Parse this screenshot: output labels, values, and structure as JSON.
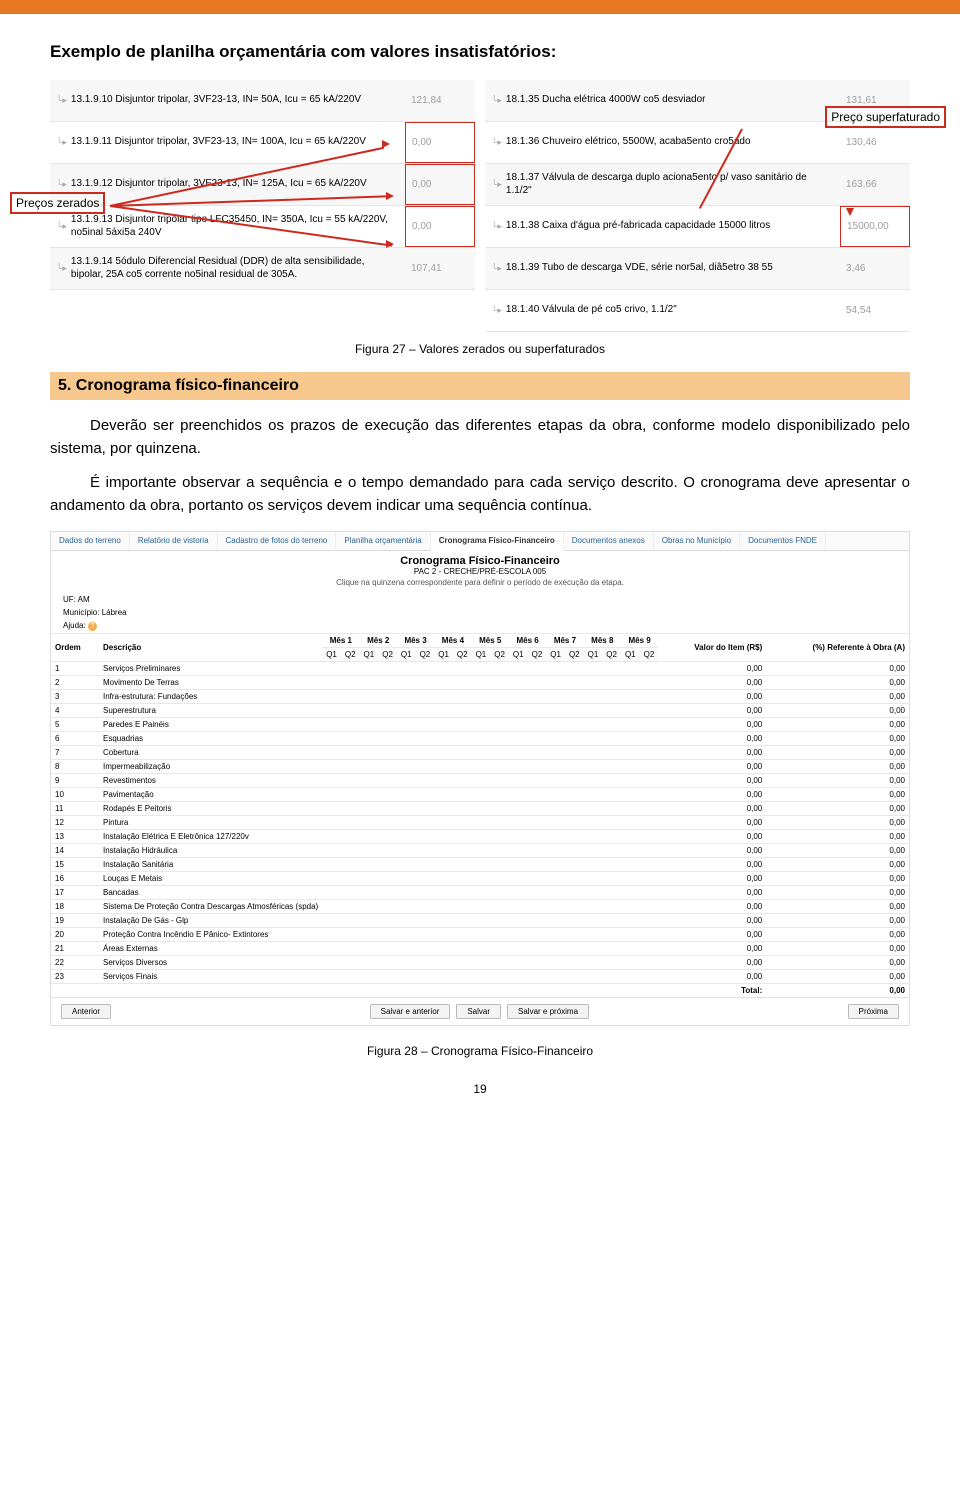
{
  "header": {
    "title": "Exemplo de planilha orçamentária com valores insatisfatórios:"
  },
  "annot": {
    "precos_zerados": "Preços zerados",
    "preco_superf": "Preço superfaturado"
  },
  "leftGrid": [
    {
      "desc": "13.1.9.10 Disjuntor tripolar, 3VF23-13, IN= 50A, Icu = 65 kA/220V",
      "val": "121,84",
      "boxed": false
    },
    {
      "desc": "13.1.9.11 Disjuntor tripolar, 3VF23-13, IN= 100A, Icu = 65 kA/220V",
      "val": "0,00",
      "boxed": true
    },
    {
      "desc": "13.1.9.12 Disjuntor tripolar, 3VF23-13, IN= 125A, Icu = 65 kA/220V",
      "val": "0,00",
      "boxed": true
    },
    {
      "desc": "13.1.9.13 Disjuntor tripolar tipo LFC35450, IN= 350A, Icu = 55 kA/220V, no5inal 5áxi5a 240V",
      "val": "0,00",
      "boxed": true
    },
    {
      "desc": "13.1.9.14 5ódulo Diferencial Residual (DDR) de alta sensibilidade, bipolar, 25A co5 corrente no5inal residual de 305A.",
      "val": "107,41",
      "boxed": false
    }
  ],
  "rightGrid": [
    {
      "desc": "18.1.35 Ducha elétrica 4000W co5 desviador",
      "val": "131,61",
      "boxed": false
    },
    {
      "desc": "18.1.36 Chuveiro elétrico, 5500W, acaba5ento cro5ado",
      "val": "130,46",
      "boxed": false
    },
    {
      "desc": "18.1.37 Válvula de descarga duplo aciona5ento p/ vaso sanitário de 1.1/2\"",
      "val": "163,66",
      "boxed": false
    },
    {
      "desc": "18.1.38 Caixa d'água pré-fabricada capacidade 15000 litros",
      "val": "15000,00",
      "boxed": true
    },
    {
      "desc": "18.1.39 Tubo de descarga VDE, série nor5al, diâ5etro 38 55",
      "val": "3,46",
      "boxed": false
    },
    {
      "desc": "18.1.40 Válvula de pé co5 crivo, 1.1/2\"",
      "val": "54,54",
      "boxed": false
    }
  ],
  "fig27": "Figura 27 – Valores zerados ou superfaturados",
  "section5": {
    "head": "5. Cronograma físico-financeiro"
  },
  "para1": "Deverão ser preenchidos os prazos de execução das diferentes etapas da obra, conforme modelo disponibilizado pelo sistema, por quinzena.",
  "para2": "É importante observar a sequência e o tempo demandado para cada serviço descrito. O cronograma deve apresentar o andamento da obra, portanto os serviços devem indicar uma sequência contínua.",
  "cron": {
    "tabs": [
      "Dados do terreno",
      "Relatório de vistoria",
      "Cadastro de fotos do terreno",
      "Planilha orçamentária",
      "Cronograma Físico-Financeiro",
      "Documentos anexos",
      "Obras no Município",
      "Documentos FNDE"
    ],
    "activeTab": 4,
    "title": "Cronograma Físico-Financeiro",
    "sub": "PAC 2 - CRECHE/PRÉ-ESCOLA 005",
    "sub2": "Clique na quinzena correspondente para definir o período de execução da etapa.",
    "uf_label": "UF:",
    "uf": "AM",
    "mun_label": "Município:",
    "mun": "Lábrea",
    "ajuda_label": "Ajuda:",
    "cols": {
      "ordem": "Ordem",
      "descricao": "Descrição",
      "meses": [
        "Mês 1",
        "Mês 2",
        "Mês 3",
        "Mês 4",
        "Mês 5",
        "Mês 6",
        "Mês 7",
        "Mês 8",
        "Mês 9"
      ],
      "q": [
        "Q1",
        "Q2"
      ],
      "valor": "Valor do Item (R$)",
      "pct": "(%) Referente à Obra (A)"
    },
    "rows": [
      {
        "n": "1",
        "d": "Serviços Preliminares",
        "v": "0,00",
        "p": "0,00"
      },
      {
        "n": "2",
        "d": "Movimento De Terras",
        "v": "0,00",
        "p": "0,00"
      },
      {
        "n": "3",
        "d": "Infra-estrutura: Fundações",
        "v": "0,00",
        "p": "0,00"
      },
      {
        "n": "4",
        "d": "Superestrutura",
        "v": "0,00",
        "p": "0,00"
      },
      {
        "n": "5",
        "d": "Paredes E Painéis",
        "v": "0,00",
        "p": "0,00"
      },
      {
        "n": "6",
        "d": "Esquadrias",
        "v": "0,00",
        "p": "0,00"
      },
      {
        "n": "7",
        "d": "Cobertura",
        "v": "0,00",
        "p": "0,00"
      },
      {
        "n": "8",
        "d": "Impermeabilização",
        "v": "0,00",
        "p": "0,00"
      },
      {
        "n": "9",
        "d": "Revestimentos",
        "v": "0,00",
        "p": "0,00"
      },
      {
        "n": "10",
        "d": "Pavimentação",
        "v": "0,00",
        "p": "0,00"
      },
      {
        "n": "11",
        "d": "Rodapés E Peitoris",
        "v": "0,00",
        "p": "0,00"
      },
      {
        "n": "12",
        "d": "Pintura",
        "v": "0,00",
        "p": "0,00"
      },
      {
        "n": "13",
        "d": "Instalação Elétrica E Eletrônica 127/220v",
        "v": "0,00",
        "p": "0,00"
      },
      {
        "n": "14",
        "d": "Instalação Hidráulica",
        "v": "0,00",
        "p": "0,00"
      },
      {
        "n": "15",
        "d": "Instalação Sanitária",
        "v": "0,00",
        "p": "0,00"
      },
      {
        "n": "16",
        "d": "Louças E Metais",
        "v": "0,00",
        "p": "0,00"
      },
      {
        "n": "17",
        "d": "Bancadas",
        "v": "0,00",
        "p": "0,00"
      },
      {
        "n": "18",
        "d": "Sistema De Proteção Contra Descargas Atmosféricas (spda)",
        "v": "0,00",
        "p": "0,00"
      },
      {
        "n": "19",
        "d": "Instalação De Gás - Glp",
        "v": "0,00",
        "p": "0,00"
      },
      {
        "n": "20",
        "d": "Proteção Contra Incêndio E Pânico- Extintores",
        "v": "0,00",
        "p": "0,00"
      },
      {
        "n": "21",
        "d": "Áreas Externas",
        "v": "0,00",
        "p": "0,00"
      },
      {
        "n": "22",
        "d": "Serviços Diversos",
        "v": "0,00",
        "p": "0,00"
      },
      {
        "n": "23",
        "d": "Serviços Finais",
        "v": "0,00",
        "p": "0,00"
      }
    ],
    "total_label": "Total:",
    "total": "0,00",
    "btns": {
      "anterior": "Anterior",
      "salvar_ant": "Salvar e anterior",
      "salvar": "Salvar",
      "salvar_prox": "Salvar e próxima",
      "proxima": "Próxima"
    }
  },
  "fig28": "Figura 28 – Cronograma Físico-Financeiro",
  "pageNum": "19",
  "colors": {
    "accent": "#e87722",
    "red": "#cc2a1e",
    "secbg": "#f7c88d"
  }
}
